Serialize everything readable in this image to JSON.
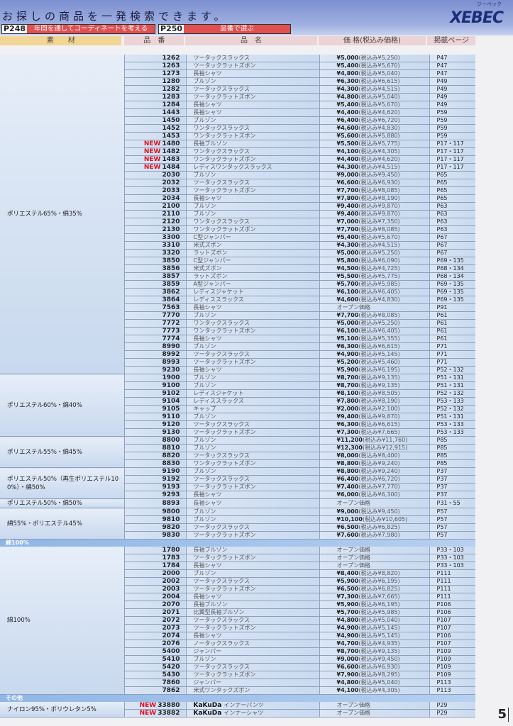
{
  "header": {
    "title": "お探しの商品を一発検索できます。",
    "logo": "XEBEC",
    "logo_kana": "ジーベック",
    "links": [
      {
        "page": "P248",
        "label": "年間を通してコーディネートを考える"
      },
      {
        "page": "P250",
        "label": "品番で選ぶ"
      }
    ]
  },
  "columns": {
    "material": "素　　材",
    "code": "品　番",
    "name": "品　名",
    "price": "価 格(税込み価格)",
    "page": "掲載ページ"
  },
  "new_label": "NEW",
  "tax_label": "税込み",
  "open_price": "オープン価格",
  "brand": "KaKuDa",
  "colors": {
    "banner": "#7b8fd0",
    "new": "#e01020",
    "row": "#d2e0f2",
    "section": "#8fb6e6"
  },
  "sections": [
    {
      "title": "",
      "groups": [
        {
          "material": "ポリエステル65%・綿35%",
          "rows": [
            [
              "1262",
              "ツータックスラックス",
              "¥5,000",
              "¥5,250",
              "P47",
              0
            ],
            [
              "1263",
              "ツータックラットズボン",
              "¥5,400",
              "¥5,670",
              "P47",
              0
            ],
            [
              "1273",
              "長袖シャツ",
              "¥4,800",
              "¥5,040",
              "P47",
              0
            ],
            [
              "1280",
              "ブルゾン",
              "¥6,300",
              "¥6,615",
              "P49",
              0
            ],
            [
              "1282",
              "ツータックスラックス",
              "¥4,300",
              "¥4,515",
              "P49",
              0
            ],
            [
              "1283",
              "ツータックラットズボン",
              "¥4,800",
              "¥5,040",
              "P49",
              0
            ],
            [
              "1284",
              "長袖シャツ",
              "¥5,400",
              "¥5,670",
              "P49",
              0
            ],
            [
              "1443",
              "長袖シャツ",
              "¥4,400",
              "¥4,620",
              "P59",
              0
            ],
            [
              "1450",
              "ブルゾン",
              "¥6,400",
              "¥6,720",
              "P59",
              0
            ],
            [
              "1452",
              "ワンタックスラックス",
              "¥4,600",
              "¥4,830",
              "P59",
              0
            ],
            [
              "1453",
              "ワンタックラットズボン",
              "¥5,600",
              "¥5,880",
              "P59",
              0
            ],
            [
              "1480",
              "長袖ブルゾン",
              "¥5,500",
              "¥5,775",
              "P17・117",
              1
            ],
            [
              "1482",
              "ワンタックスラックス",
              "¥4,100",
              "¥4,305",
              "P17・117",
              1
            ],
            [
              "1483",
              "ワンタックラットズボン",
              "¥4,400",
              "¥4,620",
              "P17・117",
              1
            ],
            [
              "1484",
              "レディスワンタックスラックス",
              "¥4,300",
              "¥4,515",
              "P17・117",
              1
            ],
            [
              "2030",
              "ブルゾン",
              "¥9,000",
              "¥9,450",
              "P65",
              0
            ],
            [
              "2032",
              "ツータックスラックス",
              "¥6,600",
              "¥6,930",
              "P65",
              0
            ],
            [
              "2033",
              "ツータックラットズボン",
              "¥7,700",
              "¥8,085",
              "P65",
              0
            ],
            [
              "2034",
              "長袖シャツ",
              "¥7,800",
              "¥8,190",
              "P65",
              0
            ],
            [
              "2100",
              "ブルゾン",
              "¥9,400",
              "¥9,870",
              "P63",
              0
            ],
            [
              "2110",
              "ブルゾン",
              "¥9,400",
              "¥9,870",
              "P63",
              0
            ],
            [
              "2120",
              "ワンタックスラックス",
              "¥7,000",
              "¥7,350",
              "P63",
              0
            ],
            [
              "2130",
              "ワンタックラットズボン",
              "¥7,700",
              "¥8,085",
              "P63",
              0
            ],
            [
              "3300",
              "C型ジャンパー",
              "¥5,400",
              "¥5,670",
              "P67",
              0
            ],
            [
              "3310",
              "米式ズボン",
              "¥4,300",
              "¥4,515",
              "P67",
              0
            ],
            [
              "3320",
              "ラットズボン",
              "¥5,000",
              "¥5,250",
              "P67",
              0
            ],
            [
              "3850",
              "C型ジャンパー",
              "¥5,800",
              "¥6,090",
              "P69・135",
              0
            ],
            [
              "3856",
              "米式ズボン",
              "¥4,500",
              "¥4,725",
              "P68・134",
              0
            ],
            [
              "3857",
              "ラットズボン",
              "¥5,500",
              "¥5,775",
              "P68・134",
              0
            ],
            [
              "3859",
              "A型ジャンパー",
              "¥5,700",
              "¥5,985",
              "P69・135",
              0
            ],
            [
              "3862",
              "レディスジャケット",
              "¥6,100",
              "¥6,405",
              "P69・135",
              0
            ],
            [
              "3864",
              "レディススラックス",
              "¥4,600",
              "¥4,830",
              "P69・135",
              0
            ],
            [
              "7563",
              "長袖シャツ",
              "",
              "",
              "P91",
              0
            ],
            [
              "7770",
              "ブルゾン",
              "¥7,700",
              "¥8,085",
              "P61",
              0
            ],
            [
              "7772",
              "ワンタックスラックス",
              "¥5,000",
              "¥5,250",
              "P61",
              0
            ],
            [
              "7773",
              "ワンタックラットズボン",
              "¥6,100",
              "¥6,405",
              "P61",
              0
            ],
            [
              "7774",
              "長袖シャツ",
              "¥5,100",
              "¥5,355",
              "P61",
              0
            ],
            [
              "8990",
              "ブルゾン",
              "¥6,300",
              "¥6,615",
              "P71",
              0
            ],
            [
              "8992",
              "ツータックスラックス",
              "¥4,900",
              "¥5,145",
              "P71",
              0
            ],
            [
              "8993",
              "ツータックラットズボン",
              "¥5,200",
              "¥5,460",
              "P71",
              0
            ],
            [
              "9230",
              "長袖シャツ",
              "¥5,900",
              "¥6,195",
              "P52・132",
              0
            ]
          ]
        },
        {
          "material": "ポリエステル60%・綿40%",
          "rows": [
            [
              "1900",
              "ブルゾン",
              "¥8,700",
              "¥9,135",
              "P51・131",
              0
            ],
            [
              "9100",
              "ブルゾン",
              "¥8,700",
              "¥9,135",
              "P51・131",
              0
            ],
            [
              "9102",
              "レディスジャケット",
              "¥8,100",
              "¥8,505",
              "P52・132",
              0
            ],
            [
              "9104",
              "レディススラックス",
              "¥7,800",
              "¥8,190",
              "P53・133",
              0
            ],
            [
              "9105",
              "キャップ",
              "¥2,000",
              "¥2,100",
              "P52・132",
              0
            ],
            [
              "9110",
              "ブルゾン",
              "¥9,400",
              "¥9,870",
              "P51・131",
              0
            ],
            [
              "9120",
              "ツータックスラックス",
              "¥6,300",
              "¥6,615",
              "P53・133",
              0
            ],
            [
              "9130",
              "ツータックラットズボン",
              "¥7,300",
              "¥7,665",
              "P53・133",
              0
            ]
          ]
        },
        {
          "material": "ポリエステル55%・綿45%",
          "rows": [
            [
              "8800",
              "ブルゾン",
              "¥11,200",
              "¥11,760",
              "P85",
              0
            ],
            [
              "8810",
              "ブルゾン",
              "¥12,300",
              "¥12,915",
              "P85",
              0
            ],
            [
              "8820",
              "ツータックスラックス",
              "¥8,000",
              "¥8,400",
              "P85",
              0
            ],
            [
              "8830",
              "ワンタックラットズボン",
              "¥8,800",
              "¥9,240",
              "P85",
              0
            ]
          ]
        },
        {
          "material": "ポリエステル50%（再生ポリエステル100%）・綿50%",
          "rows": [
            [
              "9190",
              "ブルゾン",
              "¥8,800",
              "¥9,240",
              "P37",
              0
            ],
            [
              "9192",
              "ツータックスラックス",
              "¥6,400",
              "¥6,720",
              "P37",
              0
            ],
            [
              "9193",
              "ツータックラットズボン",
              "¥7,400",
              "¥7,770",
              "P37",
              0
            ],
            [
              "9293",
              "長袖シャツ",
              "¥6,000",
              "¥6,300",
              "P37",
              0
            ]
          ]
        },
        {
          "material": "ポリエステル50%・綿50%",
          "rows": [
            [
              "8893",
              "長袖シャツ",
              "",
              "",
              "P31・55",
              0
            ]
          ]
        },
        {
          "material": "綿55%・ポリエステル45%",
          "rows": [
            [
              "9800",
              "ブルゾン",
              "¥9,000",
              "¥9,450",
              "P57",
              0
            ],
            [
              "9810",
              "ブルゾン",
              "¥10,100",
              "¥10,605",
              "P57",
              0
            ],
            [
              "9820",
              "ツータックスラックス",
              "¥6,500",
              "¥6,825",
              "P57",
              0
            ],
            [
              "9830",
              "ツータックラットズボン",
              "¥7,600",
              "¥7,980",
              "P57",
              0
            ]
          ]
        }
      ]
    },
    {
      "title": "綿100%",
      "groups": [
        {
          "material": "綿100%",
          "rows": [
            [
              "1780",
              "長袖ブルゾン",
              "",
              "",
              "P33・103",
              0
            ],
            [
              "1783",
              "ツータックラットズボン",
              "",
              "",
              "P33・103",
              0
            ],
            [
              "1784",
              "長袖シャツ",
              "",
              "",
              "P33・103",
              0
            ],
            [
              "2000",
              "ブルゾン",
              "¥8,400",
              "¥8,820",
              "P111",
              0
            ],
            [
              "2002",
              "ツータックスラックス",
              "¥5,900",
              "¥6,195",
              "P111",
              0
            ],
            [
              "2003",
              "ツータックラットズボン",
              "¥6,500",
              "¥6,825",
              "P111",
              0
            ],
            [
              "2004",
              "長袖シャツ",
              "¥7,300",
              "¥7,665",
              "P111",
              0
            ],
            [
              "2070",
              "長袖ブルゾン",
              "¥5,900",
              "¥6,195",
              "P106",
              0
            ],
            [
              "2071",
              "比翼型長袖ブルゾン",
              "¥5,700",
              "¥5,985",
              "P106",
              0
            ],
            [
              "2072",
              "ツータックスラックス",
              "¥4,800",
              "¥5,040",
              "P107",
              0
            ],
            [
              "2073",
              "ツータックラットズボン",
              "¥4,900",
              "¥5,145",
              "P107",
              0
            ],
            [
              "2074",
              "長袖シャツ",
              "¥4,900",
              "¥5,145",
              "P106",
              0
            ],
            [
              "2076",
              "ノータックスラックス",
              "¥4,700",
              "¥4,935",
              "P107",
              0
            ],
            [
              "5400",
              "ジャンパー",
              "¥8,700",
              "¥9,135",
              "P109",
              0
            ],
            [
              "5410",
              "ブルゾン",
              "¥9,000",
              "¥9,450",
              "P109",
              0
            ],
            [
              "5420",
              "ツータックスラックス",
              "¥6,600",
              "¥6,930",
              "P109",
              0
            ],
            [
              "5430",
              "ツータックラットズボン",
              "¥7,900",
              "¥8,295",
              "P109",
              0
            ],
            [
              "7860",
              "ジャンパー",
              "¥4,800",
              "¥5,040",
              "P113",
              0
            ],
            [
              "7862",
              "米式ワンタックズボン",
              "¥4,100",
              "¥4,305",
              "P113",
              0
            ]
          ]
        }
      ]
    },
    {
      "title": "その他",
      "groups": [
        {
          "material": "ナイロン95%・ポリウレタン5%",
          "brand_rows": true,
          "rows": [
            [
              "33880",
              "インナーパンツ",
              "",
              "",
              "P29",
              1
            ],
            [
              "33882",
              "インナーシャツ",
              "",
              "",
              "P29",
              1
            ]
          ]
        }
      ]
    }
  ],
  "page_number": "5"
}
